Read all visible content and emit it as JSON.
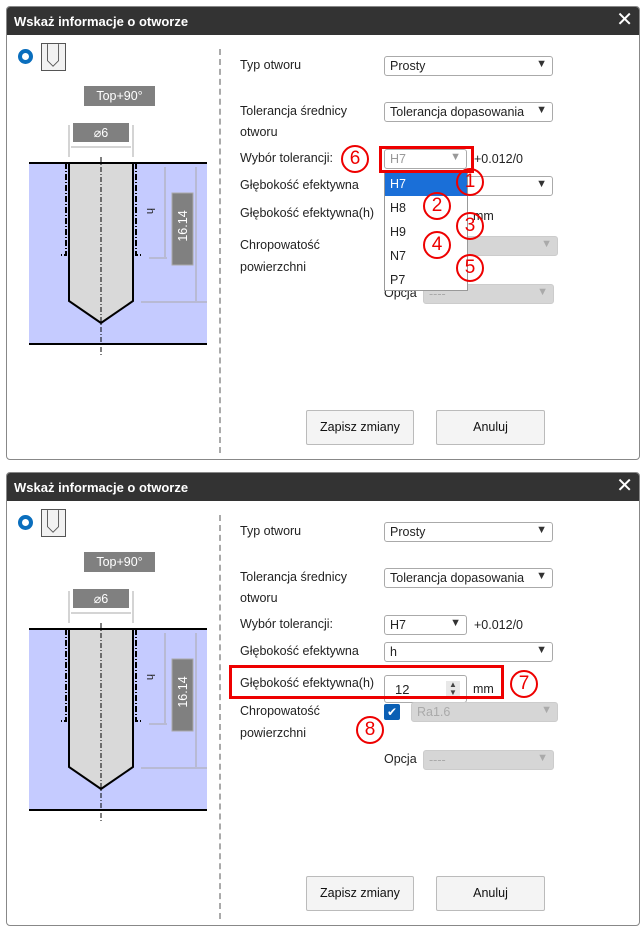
{
  "dialogs": [
    {
      "title": "Wskaż informacje o otworze",
      "diagram": {
        "top_label": "Top+90°",
        "diameter": "⌀6",
        "depth_label": "h",
        "depth_value": "16.14"
      },
      "labels": {
        "hole_type": "Typ otworu",
        "tolerance_1": "Tolerancja średnicy",
        "tolerance_2": "otworu",
        "tolerance_select": "Wybór tolerancji:",
        "eff_depth": "Głębokość efektywna",
        "eff_depth_h": "Głębokość efektywna(h)",
        "roughness_1": "Chropowatość",
        "roughness_2": "powierzchni",
        "option": "Opcja",
        "mm": "mm"
      },
      "values": {
        "hole_type": "Prosty",
        "tolerance": "Tolerancja dopasowania",
        "tolerance_select": "H7",
        "tolerance_range": "+0.012/0",
        "option": "----"
      },
      "dropdown": [
        "H7",
        "H8",
        "H9",
        "N7",
        "P7"
      ],
      "annotations": [
        "6",
        "1",
        "2",
        "3",
        "4",
        "5"
      ],
      "buttons": {
        "save": "Zapisz zmiany",
        "cancel": "Anuluj"
      }
    },
    {
      "title": "Wskaż informacje o otworze",
      "diagram": {
        "top_label": "Top+90°",
        "diameter": "⌀6",
        "depth_label": "h",
        "depth_value": "16.14"
      },
      "labels": {
        "hole_type": "Typ otworu",
        "tolerance_1": "Tolerancja średnicy",
        "tolerance_2": "otworu",
        "tolerance_select": "Wybór tolerancji:",
        "eff_depth": "Głębokość efektywna",
        "eff_depth_h": "Głębokość efektywna(h)",
        "roughness_1": "Chropowatość",
        "roughness_2": "powierzchni",
        "option": "Opcja",
        "mm": "mm"
      },
      "values": {
        "hole_type": "Prosty",
        "tolerance": "Tolerancja dopasowania",
        "tolerance_select": "H7",
        "tolerance_range": "+0.012/0",
        "eff_depth": "h",
        "eff_depth_h": "12",
        "roughness_checked": true,
        "roughness": "Ra1.6",
        "option": "----"
      },
      "annotations": [
        "7",
        "8"
      ],
      "buttons": {
        "save": "Zapisz zmiany",
        "cancel": "Anuluj"
      }
    }
  ],
  "colors": {
    "header": "#333333",
    "accent": "#1a6fd8",
    "annotation": "#e00000",
    "material": "#c5cbff"
  }
}
